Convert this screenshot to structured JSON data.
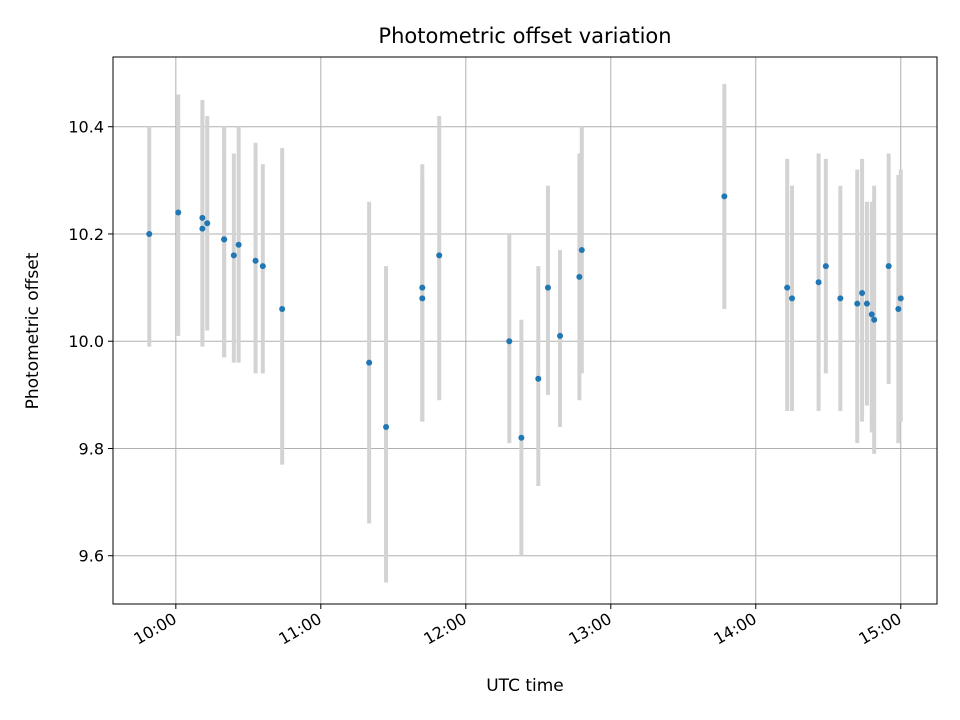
{
  "chart_data": {
    "type": "scatter",
    "title": "Photometric offset variation",
    "xlabel": "UTC time",
    "ylabel": "Photometric offset",
    "x_tick_labels": [
      "10:00",
      "11:00",
      "12:00",
      "13:00",
      "14:00",
      "15:00"
    ],
    "y_tick_labels": [
      "9.6",
      "9.8",
      "10.0",
      "10.2",
      "10.4"
    ],
    "xlim": [
      "09:34",
      "15:15"
    ],
    "ylim": [
      9.51,
      10.53
    ],
    "grid": true,
    "legend": "none",
    "colors": {
      "marker": "#1f77b4",
      "errorbar": "#d3d3d3",
      "grid": "#b0b0b0"
    },
    "points": [
      {
        "x": "09:49",
        "y": 10.2,
        "low": 9.99,
        "high": 10.4
      },
      {
        "x": "10:01",
        "y": 10.24,
        "low": 10.01,
        "high": 10.46
      },
      {
        "x": "10:11",
        "y": 10.23,
        "low": 9.99,
        "high": 10.45
      },
      {
        "x": "10:11",
        "y": 10.21,
        "low": 10.02,
        "high": 10.43
      },
      {
        "x": "10:13",
        "y": 10.22,
        "low": 10.02,
        "high": 10.42
      },
      {
        "x": "10:20",
        "y": 10.19,
        "low": 9.97,
        "high": 10.4
      },
      {
        "x": "10:20",
        "y": 10.19,
        "low": 9.97,
        "high": 10.4
      },
      {
        "x": "10:24",
        "y": 10.16,
        "low": 9.96,
        "high": 10.35
      },
      {
        "x": "10:26",
        "y": 10.18,
        "low": 9.96,
        "high": 10.4
      },
      {
        "x": "10:33",
        "y": 10.15,
        "low": 9.94,
        "high": 10.37
      },
      {
        "x": "10:36",
        "y": 10.14,
        "low": 9.94,
        "high": 10.33
      },
      {
        "x": "10:44",
        "y": 10.06,
        "low": 9.77,
        "high": 10.36
      },
      {
        "x": "11:20",
        "y": 9.96,
        "low": 9.66,
        "high": 10.26
      },
      {
        "x": "11:27",
        "y": 9.84,
        "low": 9.55,
        "high": 10.14
      },
      {
        "x": "11:42",
        "y": 10.1,
        "low": 9.85,
        "high": 10.33
      },
      {
        "x": "11:42",
        "y": 10.08,
        "low": 9.85,
        "high": 10.3
      },
      {
        "x": "11:49",
        "y": 10.16,
        "low": 9.89,
        "high": 10.42
      },
      {
        "x": "12:18",
        "y": 10.0,
        "low": 9.81,
        "high": 10.2
      },
      {
        "x": "12:23",
        "y": 9.82,
        "low": 9.6,
        "high": 10.04
      },
      {
        "x": "12:30",
        "y": 9.93,
        "low": 9.73,
        "high": 10.14
      },
      {
        "x": "12:34",
        "y": 10.1,
        "low": 9.9,
        "high": 10.29
      },
      {
        "x": "12:39",
        "y": 10.01,
        "low": 9.84,
        "high": 10.17
      },
      {
        "x": "12:47",
        "y": 10.12,
        "low": 9.89,
        "high": 10.35
      },
      {
        "x": "12:48",
        "y": 10.17,
        "low": 9.94,
        "high": 10.4
      },
      {
        "x": "13:47",
        "y": 10.27,
        "low": 10.06,
        "high": 10.48
      },
      {
        "x": "14:13",
        "y": 10.1,
        "low": 9.87,
        "high": 10.34
      },
      {
        "x": "14:15",
        "y": 10.08,
        "low": 9.87,
        "high": 10.29
      },
      {
        "x": "14:26",
        "y": 10.11,
        "low": 9.87,
        "high": 10.35
      },
      {
        "x": "14:29",
        "y": 10.14,
        "low": 9.94,
        "high": 10.34
      },
      {
        "x": "14:35",
        "y": 10.08,
        "low": 9.87,
        "high": 10.29
      },
      {
        "x": "14:42",
        "y": 10.07,
        "low": 9.81,
        "high": 10.32
      },
      {
        "x": "14:44",
        "y": 10.09,
        "low": 9.85,
        "high": 10.34
      },
      {
        "x": "14:46",
        "y": 10.07,
        "low": 9.88,
        "high": 10.26
      },
      {
        "x": "14:48",
        "y": 10.05,
        "low": 9.83,
        "high": 10.26
      },
      {
        "x": "14:49",
        "y": 10.04,
        "low": 9.79,
        "high": 10.29
      },
      {
        "x": "14:55",
        "y": 10.14,
        "low": 9.92,
        "high": 10.35
      },
      {
        "x": "14:59",
        "y": 10.06,
        "low": 9.81,
        "high": 10.31
      },
      {
        "x": "15:00",
        "y": 10.08,
        "low": 9.85,
        "high": 10.32
      }
    ]
  }
}
